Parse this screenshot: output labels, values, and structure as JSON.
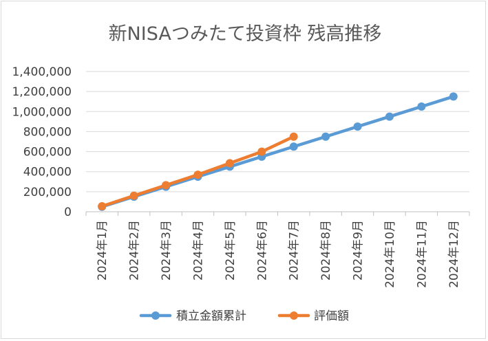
{
  "chart_data": {
    "type": "line",
    "title": "新NISAつみたて投資枠 残高推移",
    "xlabel": "",
    "ylabel": "",
    "categories": [
      "2024年1月",
      "2024年2月",
      "2024年3月",
      "2024年4月",
      "2024年5月",
      "2024年6月",
      "2024年7月",
      "2024年8月",
      "2024年9月",
      "2024年10月",
      "2024年11月",
      "2024年12月"
    ],
    "ylim": [
      0,
      1400000
    ],
    "yticks": [
      0,
      200000,
      400000,
      600000,
      800000,
      1000000,
      1200000,
      1400000
    ],
    "ytick_labels": [
      "0",
      "200,000",
      "400,000",
      "600,000",
      "800,000",
      "1,000,000",
      "1,200,000",
      "1,400,000"
    ],
    "grid": true,
    "legend_position": "bottom",
    "series": [
      {
        "name": "積立金額累計",
        "color": "#5b9bd5",
        "values": [
          50000,
          150000,
          250000,
          350000,
          450000,
          550000,
          650000,
          750000,
          850000,
          950000,
          1050000,
          1150000
        ]
      },
      {
        "name": "評価額",
        "color": "#ed7d31",
        "values": [
          55000,
          160000,
          265000,
          370000,
          485000,
          600000,
          750000,
          null,
          null,
          null,
          null,
          null
        ]
      }
    ]
  }
}
